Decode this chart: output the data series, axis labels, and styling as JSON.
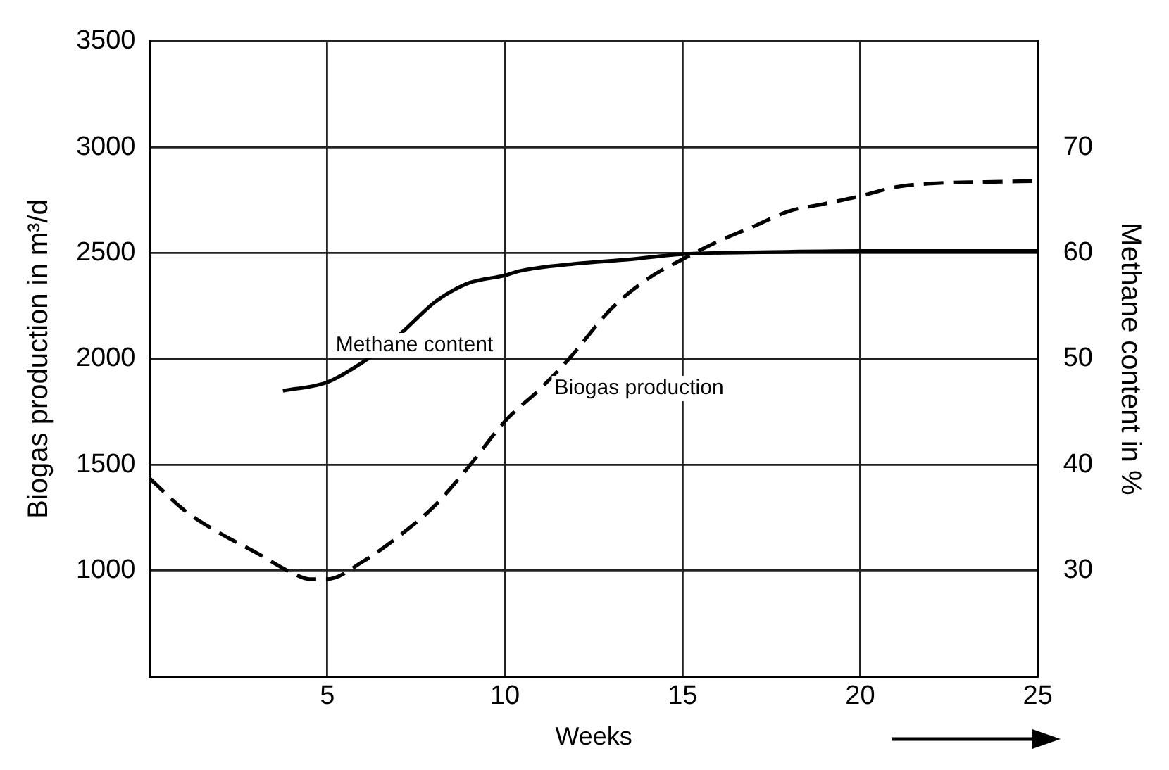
{
  "chart_data": {
    "type": "line",
    "xlabel": "Weeks",
    "ylabel": "Biogas production in m³/d",
    "y2label": "Methane content in %",
    "xlim": [
      0,
      25
    ],
    "xticks": [
      5,
      10,
      15,
      20,
      25
    ],
    "ylim": [
      500,
      3500
    ],
    "yticks": [
      1000,
      1500,
      2000,
      2500,
      3000,
      3500
    ],
    "y2lim": [
      20,
      80
    ],
    "y2ticks": [
      30,
      40,
      50,
      60,
      70
    ],
    "grid": true,
    "legend": false,
    "marker": "none",
    "series": [
      {
        "name": "Methane content",
        "color": "#000000",
        "axis": "y2",
        "line_style": "solid",
        "x": [
          3.75,
          5,
          6,
          7,
          8,
          8.5,
          9,
          10,
          10.4,
          12,
          13.5,
          15,
          17.5,
          20,
          22.5,
          25
        ],
        "values": [
          47,
          47.8,
          49.7,
          52.2,
          55.3,
          56.4,
          57.2,
          57.9,
          58.3,
          59,
          59.4,
          59.9,
          60.1,
          60.2,
          60.2,
          60.2
        ]
      },
      {
        "name": "Biogas production",
        "color": "#000000",
        "axis": "y",
        "line_style": "dashed",
        "x": [
          0,
          1,
          2,
          3,
          4,
          4.5,
          5,
          6,
          7,
          8,
          9,
          10,
          11,
          11.8,
          13,
          14,
          15,
          16,
          17,
          18,
          19,
          20,
          21,
          22,
          23.5,
          25
        ],
        "values": [
          1436,
          1282,
          1175,
          1085,
          990,
          960,
          960,
          1043,
          1161,
          1303,
          1495,
          1706,
          1860,
          2000,
          2238,
          2376,
          2471,
          2555,
          2626,
          2698,
          2733,
          2769,
          2812,
          2829,
          2836,
          2840
        ]
      }
    ]
  }
}
